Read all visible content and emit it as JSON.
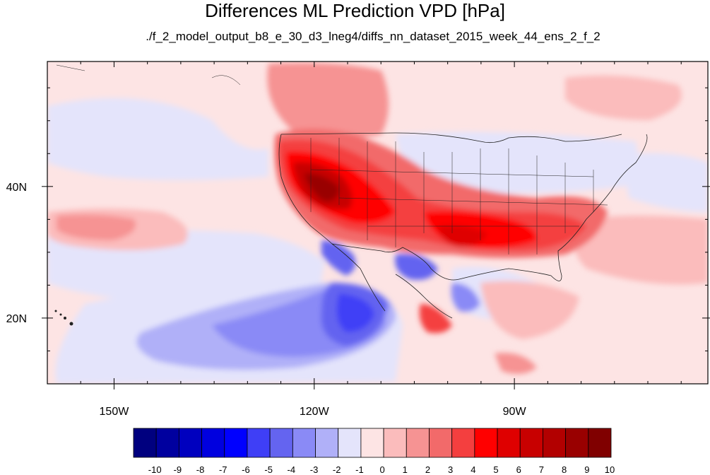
{
  "title": "Differences ML Prediction VPD [hPa]",
  "subtitle": "./f_2_model_output_b8_e_30_d3_lneg4/diffs_nn_dataset_2015_week_44_ens_2_f_2",
  "map": {
    "lon_range": [
      -160,
      -61
    ],
    "lat_range": [
      10,
      59
    ],
    "x_ticks": [
      {
        "lon": -150,
        "label": "150W"
      },
      {
        "lon": -120,
        "label": "120W"
      },
      {
        "lon": -90,
        "label": "90W"
      }
    ],
    "y_ticks": [
      {
        "lat": 40,
        "label": "40N"
      },
      {
        "lat": 20,
        "label": "20N"
      }
    ]
  },
  "colorbar": {
    "labels": [
      "-10",
      "-9",
      "-8",
      "-7",
      "-6",
      "-5",
      "-4",
      "-3",
      "-2",
      "-1",
      "0",
      "1",
      "2",
      "3",
      "4",
      "5",
      "6",
      "7",
      "8",
      "9",
      "10"
    ],
    "colors": [
      "#00007f",
      "#00009f",
      "#0000bf",
      "#0000df",
      "#0000ff",
      "#3f3ff6",
      "#6464f0",
      "#8a8af6",
      "#b0b0f8",
      "#e4e4fb",
      "#fde4e4",
      "#fbbcbc",
      "#f69393",
      "#f26a6a",
      "#f43f3f",
      "#ff0000",
      "#df0000",
      "#c80000",
      "#b20000",
      "#990000",
      "#800000"
    ]
  }
}
